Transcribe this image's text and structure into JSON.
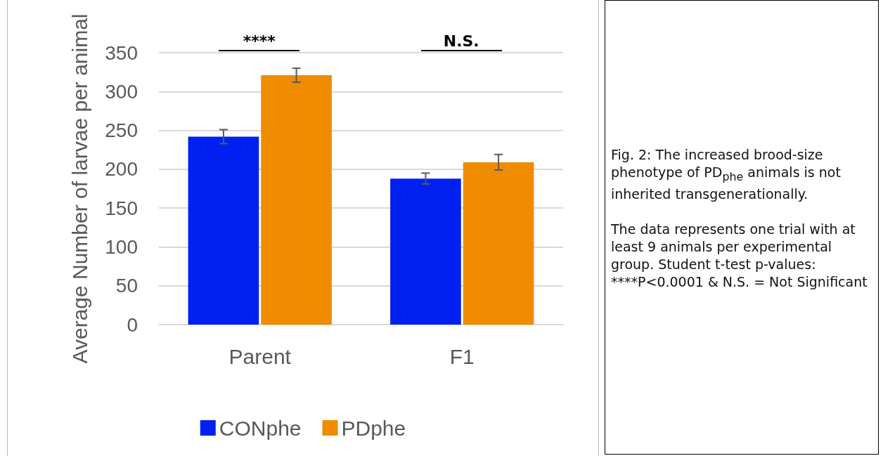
{
  "chart_data": {
    "type": "bar",
    "ylabel": "Average Number of larvae per animal",
    "categories": [
      "Parent",
      "F1"
    ],
    "series": [
      {
        "name": "CONphe",
        "color": "#0020f0",
        "values": [
          242,
          188
        ],
        "errors": [
          9,
          7
        ]
      },
      {
        "name": "PDphe",
        "color": "#f08c00",
        "values": [
          321,
          209
        ],
        "errors": [
          9,
          10
        ]
      }
    ],
    "ylim": [
      0,
      350
    ],
    "yticks": [
      0,
      50,
      100,
      150,
      200,
      250,
      300,
      350
    ],
    "grid": "y",
    "legend": "bottom",
    "annotations": [
      "****",
      "N.S.",
      "Fig. 2: The increased brood-size phenotype of PD$_{phe}$ animals is not inherited transgenerationally.",
      "The data represents one trial with at least 9 animals per experimental group. Student t-test p-values: ****P<0.0001 & N.S. = Not Significant"
    ]
  }
}
